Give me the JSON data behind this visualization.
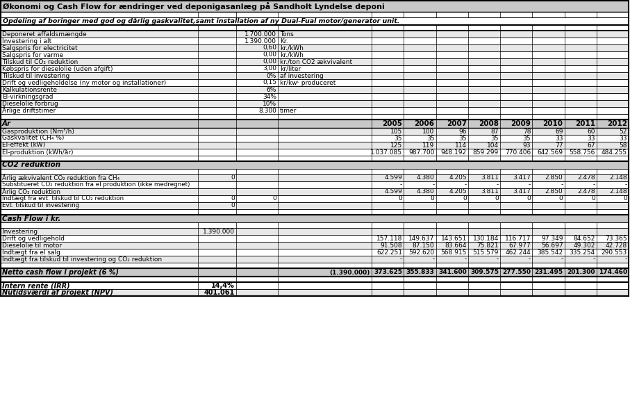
{
  "title": "Økonomi og Cash Flow for ændringer ved deponigasanlæg på Sandholt Lyndelse deponi",
  "subtitle": "Opdeling af boringer med god og dårlig gaskvalitet,samt installation af ny Dual-Fual motor/generator unit.",
  "years": [
    "2005",
    "2006",
    "2007",
    "2008",
    "2009",
    "2010",
    "2011",
    "2012"
  ],
  "param_rows": [
    {
      "label": "Deponeret affaldsmængde",
      "val": "1.700.000",
      "unit": "Tons"
    },
    {
      "label": "Investering i alt",
      "val": "1.390.000",
      "unit": "Kr."
    },
    {
      "label": "Salgspris for electricitet",
      "val": "0,60",
      "unit": "kr./kWh"
    },
    {
      "label": "Salgspris for varme",
      "val": "0,00",
      "unit": "kr./kWh"
    },
    {
      "label": "Tilskud til CO₂ reduktion",
      "val": "0,00",
      "unit": "kr./ton CO2 ækvivalent"
    },
    {
      "label": "Købspris for dieselolie (uden afgift)",
      "val": "3,00",
      "unit": "kr/liter"
    },
    {
      "label": "Tilskud til investering",
      "val": "0%",
      "unit": "af investering"
    },
    {
      "label": "Drift og vedligeholdelse (ny motor og installationer)",
      "val": "0,15",
      "unit": "kr/kwᶜ produceret"
    },
    {
      "label": "Kalkulationsrente",
      "val": "6%",
      "unit": ""
    },
    {
      "label": "El-virkningsgrad",
      "val": "34%",
      "unit": ""
    },
    {
      "label": "Dieselolie forbrug",
      "val": "10%",
      "unit": ""
    },
    {
      "label": "Årlige driftstimer",
      "val": "8.300",
      "unit": "timer"
    }
  ],
  "data_rows": [
    {
      "label": "Gasproduktion (Nm³/h)",
      "pre": [
        "",
        ""
      ],
      "data": [
        "105",
        "100",
        "96",
        "87",
        "78",
        "69",
        "60",
        "52"
      ]
    },
    {
      "label": "Gaskvalitet (CH₄ %)",
      "pre": [
        "",
        ""
      ],
      "data": [
        "35",
        "35",
        "35",
        "35",
        "35",
        "33",
        "33",
        "33"
      ]
    },
    {
      "label": "El-effekt (kW)",
      "pre": [
        "",
        ""
      ],
      "data": [
        "125",
        "119",
        "114",
        "104",
        "93",
        "77",
        "67",
        "58"
      ]
    },
    {
      "label": "El-produktion (kWh/år)",
      "pre": [
        "",
        ""
      ],
      "data": [
        "1.037.085",
        "987.700",
        "948.192",
        "859.299",
        "770.406",
        "642.569",
        "558.756",
        "484.255"
      ]
    }
  ],
  "co2_section": "CO2 reduktion",
  "co2_rows": [
    {
      "label": "Årlig ækvivalent CO₂ reduktion fra CH₄",
      "pre1": "0",
      "pre2": "",
      "data": [
        "4.599",
        "4.380",
        "4.205",
        "3.811",
        "3.417",
        "2.850",
        "2.478",
        "2.148"
      ]
    },
    {
      "label": "Substitueret CO₂ reduktion fra el produktion (ikke medregnet)",
      "pre1": "",
      "pre2": "",
      "data": [
        "-",
        "-",
        "-",
        "-",
        "-",
        "-",
        "-",
        "-"
      ]
    },
    {
      "label": "Årlig CO₂ reduktion",
      "pre1": "",
      "pre2": "",
      "data": [
        "4.599",
        "4.380",
        "4.205",
        "3.811",
        "3.417",
        "2.850",
        "2.478",
        "2.148"
      ]
    },
    {
      "label": "Indtægt fra evt. tilskud til CO₂ reduktion",
      "pre1": "0",
      "pre2": "0",
      "data": [
        "0",
        "0",
        "0",
        "0",
        "0",
        "0",
        "0",
        "0"
      ]
    },
    {
      "label": "Evt. tilskud til investering",
      "pre1": "0",
      "pre2": "",
      "data": []
    }
  ],
  "cashflow_section": "Cash Flow i kr.",
  "cashflow_rows": [
    {
      "label": "Investering",
      "pre1": "1.390.000",
      "data": []
    },
    {
      "label": "Drift og vedligehold",
      "pre1": "",
      "data": [
        "157.118",
        "149.637",
        "143.651",
        "130.184",
        "116.717",
        "97.349",
        "84.652",
        "73.365"
      ]
    },
    {
      "label": "Dieselolie til motor",
      "pre1": "",
      "data": [
        "91.508",
        "87.150",
        "83.664",
        "75.821",
        "67.977",
        "56.697",
        "49.302",
        "42.728"
      ]
    },
    {
      "label": "Indtægt fra el salg",
      "pre1": "",
      "data": [
        "622.251",
        "592.620",
        "568.915",
        "515.579",
        "462.244",
        "385.542",
        "335.254",
        "290.553"
      ]
    },
    {
      "label": "Indtægt fra tilskud til investering og CO₂ reduktion",
      "pre1": "",
      "data": [
        "-",
        "-",
        "-",
        "-",
        "-",
        "-",
        "-",
        "-"
      ]
    }
  ],
  "netto_label": "Netto cash flow i projekt (6 %)",
  "netto_pre": "(1.390.000)",
  "netto_data": [
    "373.625",
    "355.833",
    "341.600",
    "309.575",
    "277.550",
    "231.495",
    "201.300",
    "174.460"
  ],
  "irr_label": "Intern rente (IRR)",
  "irr_val": "14,4%",
  "npv_label": "Nutidsværdi af projekt (NPV)",
  "npv_val": "401.061",
  "gray": "#c8c8c8",
  "light_gray": "#e8e8e8",
  "white": "#ffffff",
  "black": "#000000"
}
